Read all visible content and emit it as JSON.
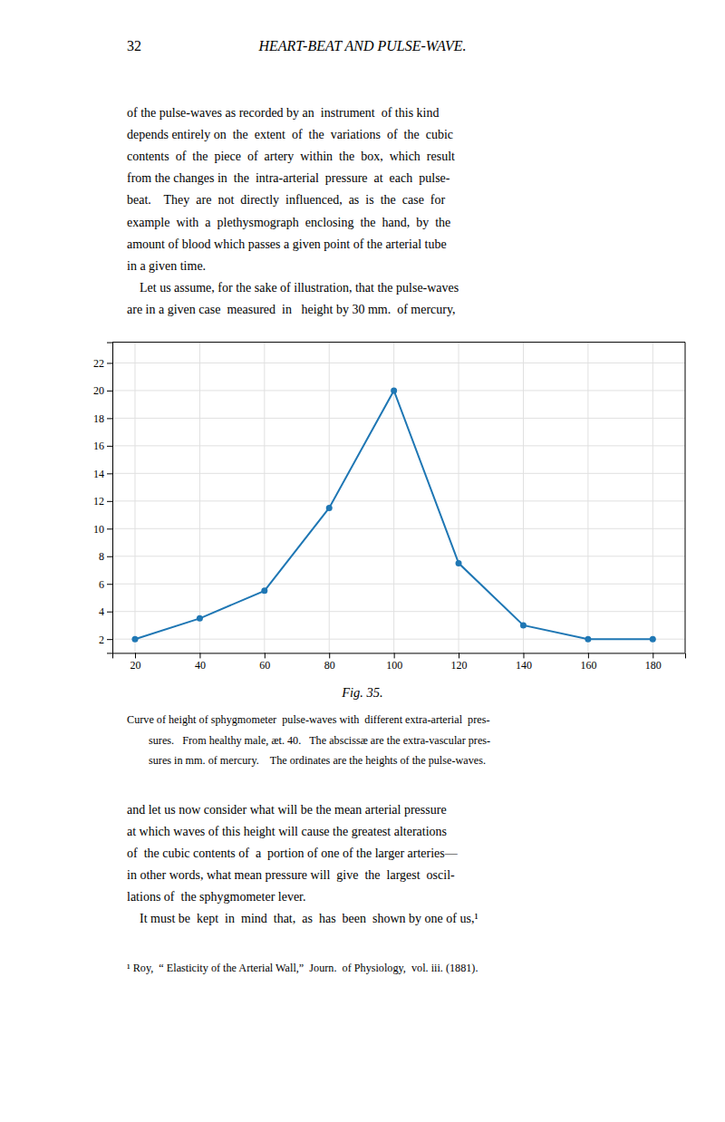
{
  "page_number": "32",
  "page_header": "HEART-BEAT AND PULSE-WAVE.",
  "body_text_top": [
    "of the pulse-waves as recorded by an  instrument  of this kind",
    "depends entirely on  the  extent  of  the  variations  of  the  cubic",
    "contents  of  the  piece  of  artery  within  the  box,  which  result",
    "from the changes in  the  intra-arterial  pressure  at  each  pulse-",
    "beat.    They  are  not  directly  influenced,  as  is  the  case  for",
    "example  with  a  plethysmograph  enclosing  the  hand,  by  the",
    "amount of blood which passes a given point of the arterial tube",
    "in a given time.",
    "    Let us assume, for the sake of illustration, that the pulse-waves",
    "are in a given case  measured  in   height by 30 mm.  of mercury,"
  ],
  "caption": [
    "Curve of height of sphygmometer  pulse-waves with  different extra-arterial  pres-",
    "sures.   From healthy male, æt. 40.   The abscissæ are the extra-vascular pres-",
    "sures in mm. of mercury.    The ordinates are the heights of the pulse-waves."
  ],
  "body_text_bottom": [
    "and let us now consider what will be the mean arterial pressure",
    "at which waves of this height will cause the greatest alterations",
    "of  the cubic contents of  a  portion of one of the larger arteries—",
    "in other words, what mean pressure will  give  the  largest  oscil-",
    "lations of  the sphygmometer lever.",
    "    It must be  kept  in  mind  that,  as  has  been  shown by one of us,¹"
  ],
  "footnote": "¹ Roy,  “ Elasticity of the Arterial Wall,”  Journ.  of Physiology,  vol. iii. (1881).",
  "chart_data": {
    "type": "line",
    "title": "Fig. 35.",
    "x": [
      20,
      40,
      60,
      80,
      100,
      120,
      140,
      160,
      180
    ],
    "values": [
      2,
      3.5,
      5.5,
      11.5,
      20,
      7.5,
      3.0,
      2.0,
      2.0
    ],
    "xlim": [
      13,
      190
    ],
    "ylim": [
      1.0,
      23.5
    ],
    "xticks": [
      20,
      40,
      60,
      80,
      100,
      120,
      140,
      160,
      180
    ],
    "yticks": [
      2,
      4,
      6,
      8,
      10,
      12,
      14,
      16,
      18,
      20,
      22
    ],
    "grid": true,
    "marker": "circle",
    "line_style": "solid"
  }
}
